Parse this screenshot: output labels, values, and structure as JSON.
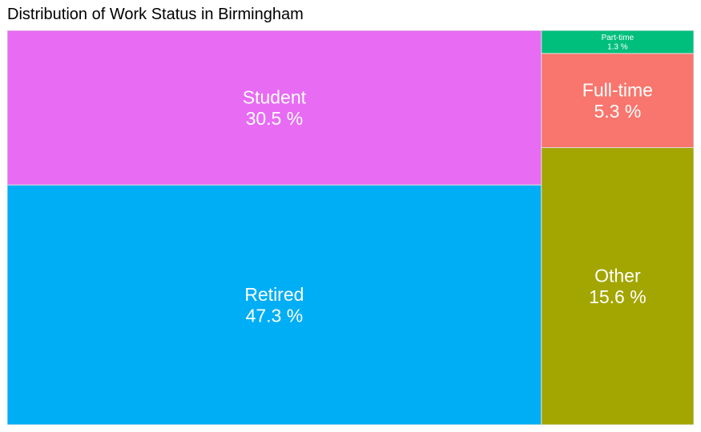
{
  "chart_data": {
    "type": "treemap",
    "title": "Distribution of Work Status in Birmingham",
    "unit": "%",
    "tiles": [
      {
        "name": "Retired",
        "value": 47.3,
        "label": "47.3 %",
        "color": "#00aef5"
      },
      {
        "name": "Student",
        "value": 30.5,
        "label": "30.5 %",
        "color": "#e76bf3"
      },
      {
        "name": "Other",
        "value": 15.6,
        "label": "15.6 %",
        "color": "#a3a500"
      },
      {
        "name": "Full-time",
        "value": 5.3,
        "label": "5.3 %",
        "color": "#f8766d"
      },
      {
        "name": "Part-time",
        "value": 1.3,
        "label": "1.3 %",
        "color": "#00bf7d"
      }
    ]
  }
}
